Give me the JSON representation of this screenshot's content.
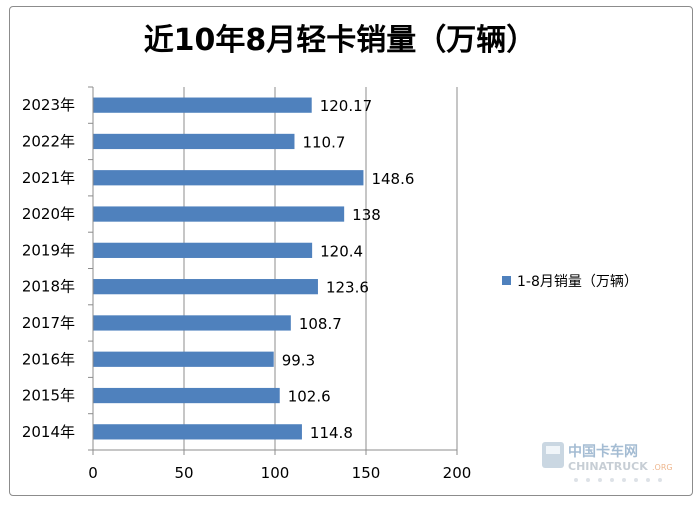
{
  "chart_data": {
    "type": "bar",
    "orientation": "horizontal",
    "title": "近10年8月轻卡销量（万辆）",
    "categories": [
      "2023年",
      "2022年",
      "2021年",
      "2020年",
      "2019年",
      "2018年",
      "2017年",
      "2016年",
      "2015年",
      "2014年"
    ],
    "series": [
      {
        "name": "1-8月销量（万辆）",
        "values": [
          120.17,
          110.7,
          148.6,
          138,
          120.4,
          123.6,
          108.7,
          99.3,
          102.6,
          114.8
        ],
        "labels": [
          "120.17",
          "110.7",
          "148.6",
          "138",
          "120.4",
          "123.6",
          "108.7",
          "99.3",
          "102.6",
          "114.8"
        ],
        "color": "#4f81bd"
      }
    ],
    "xlim": [
      0,
      200
    ],
    "xticks": [
      "0",
      "50",
      "100",
      "150",
      "200"
    ],
    "grid": "vertical",
    "legend_position": "right"
  },
  "watermark": {
    "brand": "中国卡车网",
    "latin": "CHINATRUCK",
    "suffix": ".ORG"
  }
}
